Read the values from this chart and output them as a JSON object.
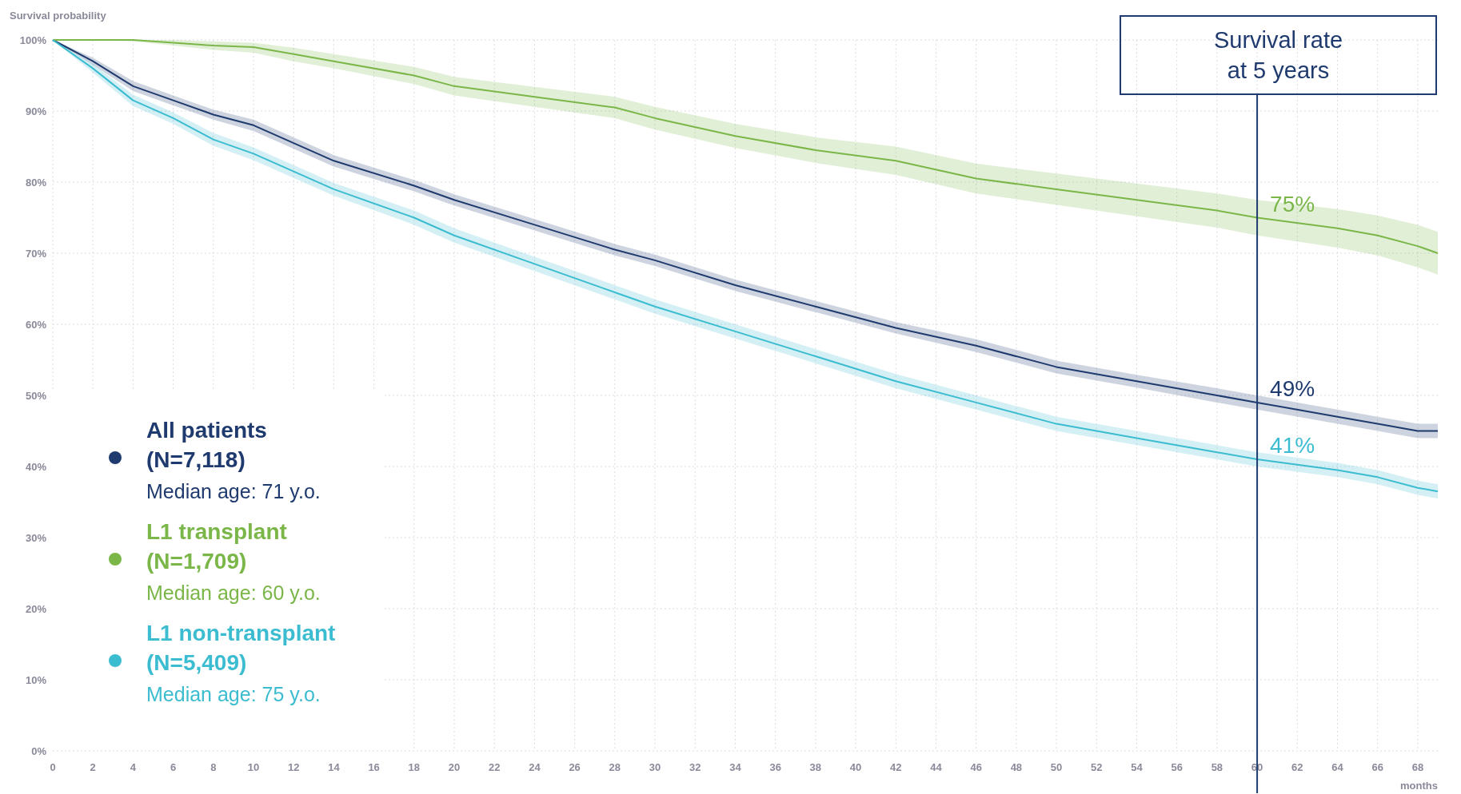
{
  "chart_data": {
    "type": "line",
    "ylabel": "Survival probability",
    "xlabel": "months",
    "xlim": [
      0,
      69
    ],
    "xticks": [
      0,
      2,
      4,
      6,
      8,
      10,
      12,
      14,
      16,
      18,
      20,
      22,
      24,
      26,
      28,
      30,
      32,
      34,
      36,
      38,
      40,
      42,
      44,
      46,
      48,
      50,
      52,
      54,
      56,
      58,
      60,
      62,
      64,
      66,
      68
    ],
    "ylim": [
      0,
      100
    ],
    "yticks": [
      {
        "value": 0,
        "label": "0%"
      },
      {
        "value": 10,
        "label": "10%"
      },
      {
        "value": 20,
        "label": "20%"
      },
      {
        "value": 30,
        "label": "30%"
      },
      {
        "value": 40,
        "label": "40%"
      },
      {
        "value": 50,
        "label": "50%"
      },
      {
        "value": 60,
        "label": "60%"
      },
      {
        "value": 70,
        "label": "70%"
      },
      {
        "value": 80,
        "label": "80%"
      },
      {
        "value": 90,
        "label": "90%"
      },
      {
        "value": 100,
        "label": "100%"
      }
    ],
    "grid": true,
    "legend": "bottom left",
    "line_style": "solid",
    "x": [
      0,
      2,
      4,
      6,
      8,
      10,
      12,
      14,
      18,
      20,
      24,
      28,
      30,
      34,
      38,
      42,
      46,
      50,
      54,
      58,
      60,
      64,
      66,
      68,
      69
    ],
    "series": [
      {
        "name": "All patients (N=7,118)",
        "color": "#1f3a6e",
        "values": [
          100,
          97,
          93.5,
          91.5,
          89.5,
          88,
          85.5,
          83,
          79.5,
          77.5,
          74,
          70.5,
          69,
          65.5,
          62.5,
          59.5,
          57,
          54,
          52,
          50,
          49,
          47,
          46,
          45,
          45
        ],
        "lower": [
          100,
          96.5,
          92.8,
          90.8,
          88.8,
          87.2,
          84.7,
          82.2,
          78.7,
          76.7,
          73.2,
          69.7,
          68.2,
          64.7,
          61.7,
          58.7,
          56.1,
          53.1,
          51.1,
          49,
          48,
          46,
          45,
          44,
          44
        ],
        "upper": [
          100,
          97.5,
          94.2,
          92.2,
          90.2,
          88.8,
          86.3,
          83.8,
          80.3,
          78.3,
          74.8,
          71.3,
          69.8,
          66.3,
          63.3,
          60.3,
          57.9,
          54.9,
          52.9,
          51,
          50,
          48,
          47,
          46,
          46
        ]
      },
      {
        "name": "L1 transplant (N=1,709)",
        "color": "#7ab648",
        "values": [
          100,
          100,
          100,
          99.6,
          99.2,
          99,
          98,
          97,
          95,
          93.5,
          92,
          90.5,
          89,
          86.5,
          84.5,
          83,
          80.5,
          79,
          77.5,
          76,
          75,
          73.5,
          72.5,
          71,
          70
        ],
        "lower": [
          100,
          100,
          99.8,
          99.2,
          98.6,
          98.2,
          97,
          96,
          93.8,
          92.2,
          90.6,
          89,
          87.4,
          84.8,
          82.7,
          81,
          78.4,
          76.8,
          75.2,
          73.6,
          72.5,
          70.8,
          69.7,
          68,
          67
        ],
        "upper": [
          100,
          100,
          100,
          100,
          99.8,
          99.6,
          98.9,
          98,
          96.2,
          94.8,
          93.4,
          92,
          90.6,
          88.2,
          86.3,
          85,
          82.6,
          81.2,
          79.8,
          78.4,
          77.5,
          76.2,
          75.3,
          74,
          73
        ]
      },
      {
        "name": "L1 non-transplant (N=5,409)",
        "color": "#3bbcd0",
        "values": [
          100,
          96,
          91.5,
          89,
          86,
          84,
          81.5,
          79,
          75,
          72.5,
          68.5,
          64.5,
          62.5,
          59,
          55.5,
          52,
          49,
          46,
          44,
          42,
          41,
          39.5,
          38.5,
          37,
          36.5
        ],
        "lower": [
          100,
          95.4,
          90.7,
          88.2,
          85.1,
          83.1,
          80.6,
          78.1,
          74,
          71.5,
          67.5,
          63.5,
          61.5,
          58,
          54.5,
          51,
          48,
          45,
          43,
          41,
          40,
          38.5,
          37.5,
          36,
          35.5
        ],
        "upper": [
          100,
          96.6,
          92.3,
          89.8,
          86.9,
          84.9,
          82.4,
          79.9,
          76,
          73.5,
          69.5,
          65.5,
          63.5,
          60,
          56.5,
          53,
          50,
          47,
          45,
          43,
          42,
          40.5,
          39.5,
          38,
          37.5
        ]
      }
    ],
    "ref_lines": [
      {
        "axis": "x",
        "value": 60,
        "label": "Survival rate\nat 5 years",
        "color": "#1f3a6e"
      }
    ],
    "annotations": [
      "Median age: 71 y.o.",
      "Median age: 60 y.o.",
      "Median age: 75 y.o.",
      {
        "text": "75%",
        "y": 75
      },
      {
        "text": "49%",
        "y": 49
      },
      {
        "text": "41%",
        "y": 41
      }
    ]
  }
}
